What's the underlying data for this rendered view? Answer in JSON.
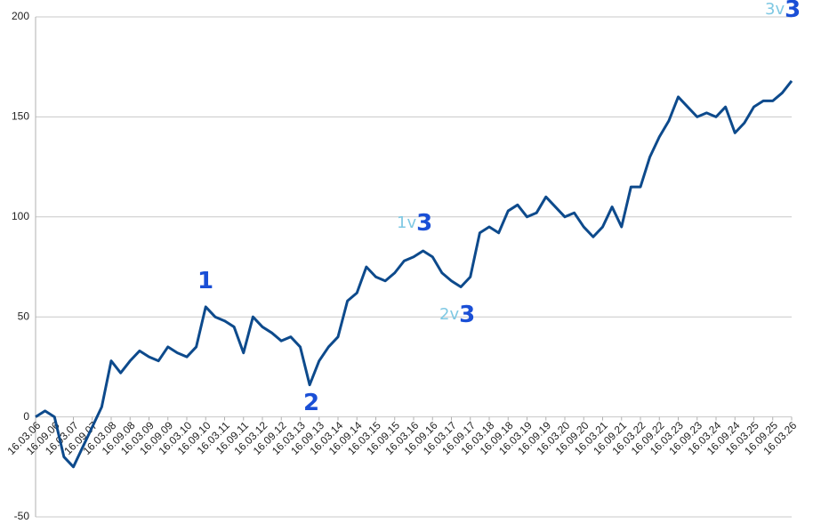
{
  "chart_data": {
    "type": "line",
    "categories": [
      "16.03.06",
      null,
      "16.09.06",
      null,
      "16.03.07",
      null,
      "16.09.07",
      null,
      "16.03.08",
      null,
      "16.09.08",
      null,
      "16.03.09",
      null,
      "16.09.09",
      null,
      "16.03.10",
      null,
      "16.09.10",
      null,
      "16.03.11",
      null,
      "16.09.11",
      null,
      "16.03.12",
      null,
      "16.09.12",
      null,
      "16.03.13",
      null,
      "16.09.13",
      null,
      "16.03.14",
      null,
      "16.09.14",
      null,
      "16.03.15",
      null,
      "16.09.15",
      null,
      "16.03.16",
      null,
      "16.09.16",
      null,
      "16.03.17",
      null,
      "16.09.17",
      null,
      "16.03.18",
      null,
      "16.09.18",
      null,
      "16.03.19",
      null,
      "16.09.19",
      null,
      "16.03.20",
      null,
      "16.09.20",
      null,
      "16.03.21",
      null,
      "16.09.21",
      null,
      "16.03.22",
      null,
      "16.09.22",
      null,
      "16.03.23",
      null,
      "16.09.23",
      null,
      "16.03.24",
      null,
      "16.09.24",
      null,
      "16.03.25",
      null,
      "16.09.25",
      null,
      "16.03.26"
    ],
    "series": [
      {
        "color": "#0d4a8c",
        "values": [
          0,
          3,
          0,
          -20,
          -25,
          -15,
          -5,
          5,
          28,
          22,
          28,
          33,
          30,
          28,
          35,
          32,
          30,
          35,
          55,
          50,
          48,
          45,
          32,
          50,
          45,
          42,
          38,
          40,
          35,
          16,
          28,
          35,
          40,
          58,
          62,
          75,
          70,
          68,
          72,
          78,
          80,
          83,
          80,
          72,
          68,
          65,
          70,
          92,
          95,
          92,
          103,
          106,
          100,
          102,
          110,
          105,
          100,
          102,
          95,
          90,
          95,
          105,
          95,
          115,
          115,
          130,
          140,
          148,
          160,
          155,
          150,
          152,
          150,
          155,
          142,
          147,
          155,
          158,
          158,
          162,
          168
        ]
      }
    ],
    "ylim": [
      -50,
      200
    ],
    "yticks": [
      -50,
      0,
      50,
      100,
      150,
      200
    ],
    "grid": true,
    "annotations": [
      {
        "parts": [
          "1"
        ]
      },
      {
        "parts": [
          "2"
        ]
      },
      {
        "parts": [
          "1v",
          "3"
        ]
      },
      {
        "parts": [
          "2v",
          "3"
        ]
      },
      {
        "parts": [
          "3v",
          "3"
        ]
      }
    ]
  }
}
